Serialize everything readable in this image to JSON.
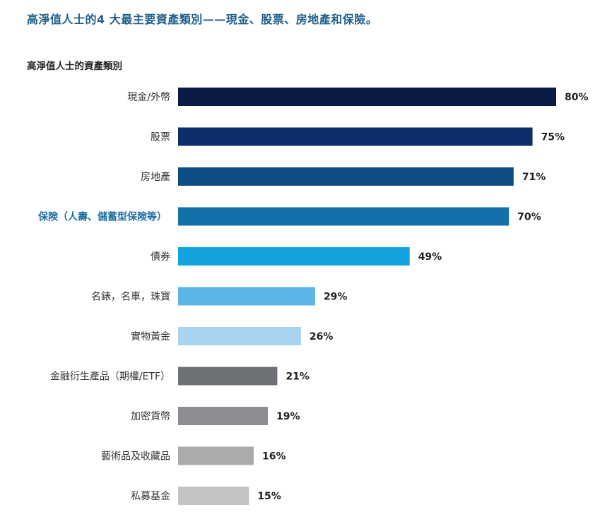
{
  "headline": "高淨值人士的4 大最主要資產類別——現金、股票、房地產和保險。",
  "chart_data": {
    "type": "bar",
    "orientation": "horizontal",
    "title": "高淨值人士的資產類別",
    "xlabel": "",
    "ylabel": "",
    "xlim": [
      0,
      100
    ],
    "grid": false,
    "highlight_category": "保険（人壽、儲蓄型保険等）",
    "categories": [
      "現金/外幣",
      "股票",
      "房地產",
      "保険（人壽、儲蓄型保険等）",
      "債券",
      "名錶，名車，珠寶",
      "實物黃金",
      "金融衍生產品（期權/ETF）",
      "加密貨幣",
      "藝術品及收藏品",
      "私募基金"
    ],
    "values": [
      80,
      75,
      71,
      70,
      49,
      29,
      26,
      21,
      19,
      16,
      15
    ],
    "value_labels": [
      "80%",
      "75%",
      "71%",
      "70%",
      "49%",
      "29%",
      "26%",
      "21%",
      "19%",
      "16%",
      "15%"
    ],
    "colors": [
      "#0b1a45",
      "#0c2f6c",
      "#0d4d84",
      "#1470a8",
      "#13a4dd",
      "#5db4e6",
      "#a9d4ef",
      "#6d7074",
      "#8c8e91",
      "#ababac",
      "#c4c4c5"
    ]
  }
}
